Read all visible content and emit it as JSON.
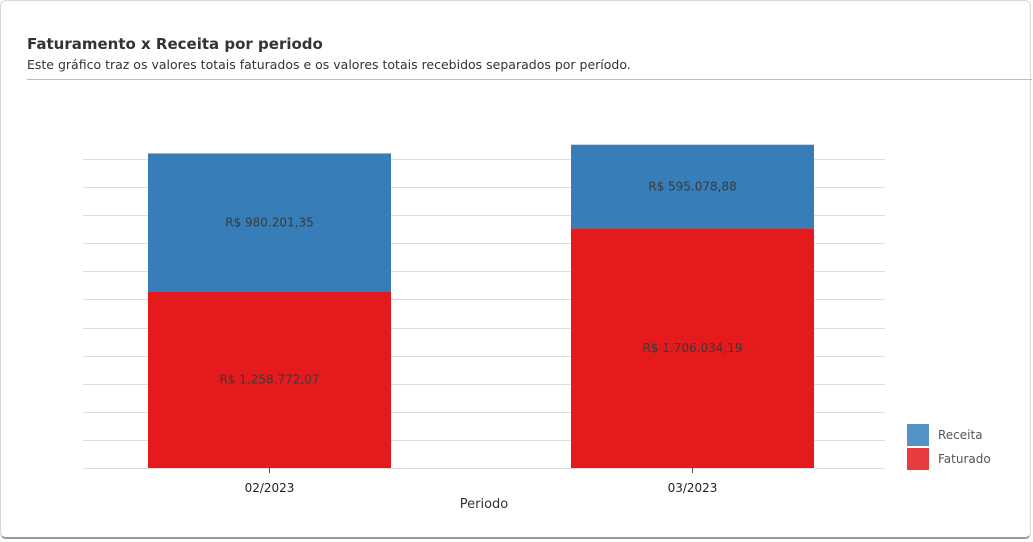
{
  "header": {
    "title": "Faturamento x Receita por periodo",
    "subtitle": "Este gráfico traz os valores totais faturados e os valores totais recebidos separados por período."
  },
  "chart_data": {
    "type": "bar",
    "stacked": true,
    "categories": [
      "02/2023",
      "03/2023"
    ],
    "xlabel": "Periodo",
    "ylabel": "",
    "ylim": [
      0,
      2420000
    ],
    "grid": true,
    "legend_position": "bottom-right",
    "series": [
      {
        "name": "Faturado",
        "color": "#e41a1c",
        "values": [
          1258772.07,
          1706034.19
        ],
        "labels": [
          "R$ 1.258.772,07",
          "R$ 1.706.034,19"
        ]
      },
      {
        "name": "Receita",
        "color": "#377eb8",
        "values": [
          980201.35,
          595078.88
        ],
        "labels": [
          "R$ 980.201,35",
          "R$ 595.078,88"
        ]
      }
    ]
  },
  "legend": {
    "items": [
      {
        "name": "Receita",
        "color": "#5592c8"
      },
      {
        "name": "Faturado",
        "color": "#e83c3e"
      }
    ]
  }
}
